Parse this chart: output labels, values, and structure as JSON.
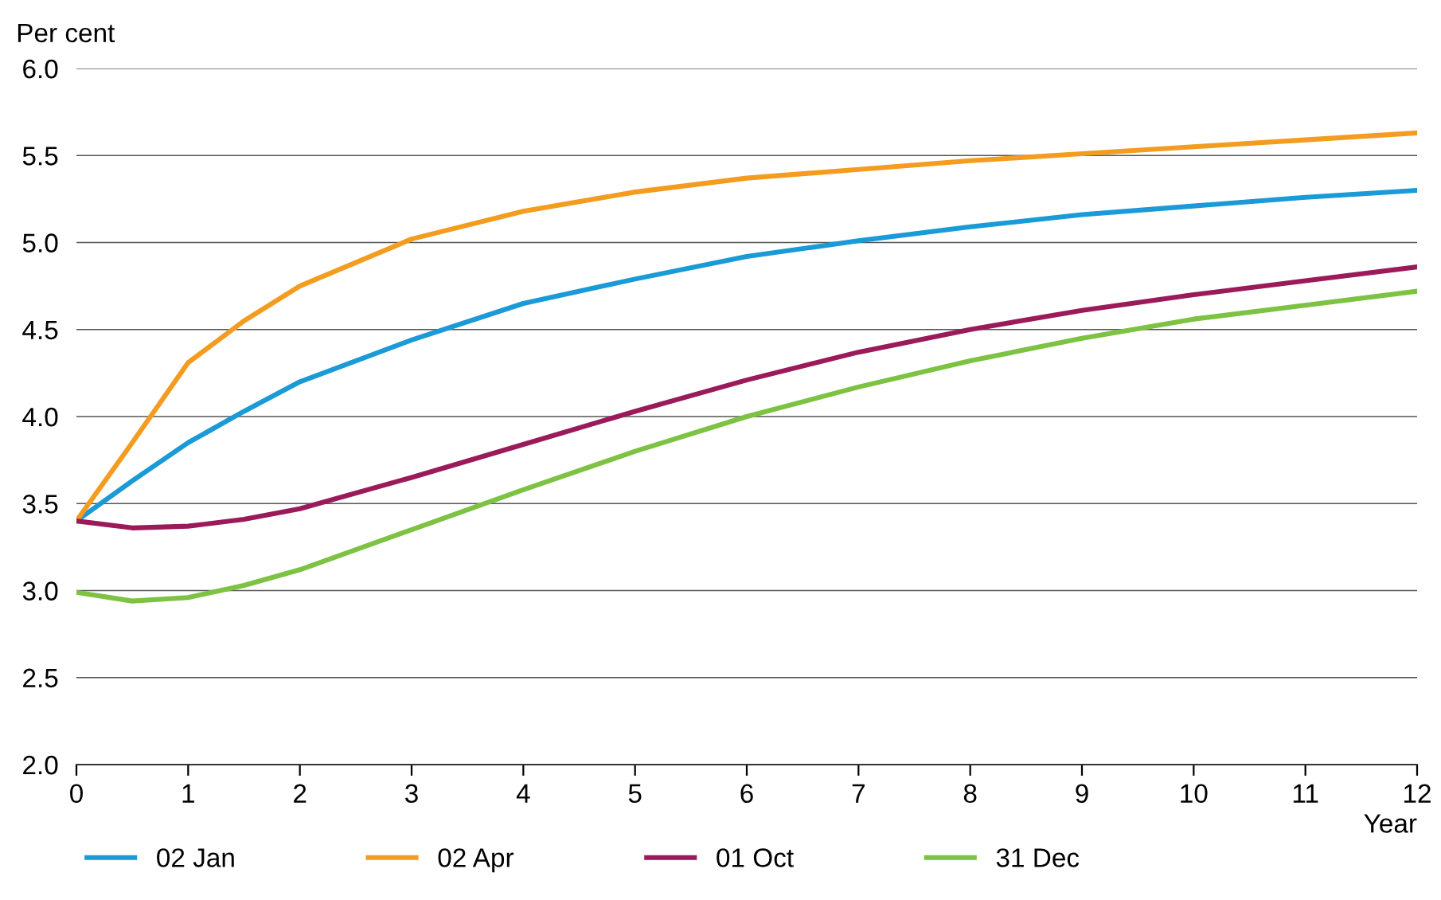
{
  "chart_data": {
    "type": "line",
    "ylabel": "Per cent",
    "xlabel": "Year",
    "x": [
      0,
      0.5,
      1,
      1.5,
      2,
      3,
      4,
      5,
      6,
      7,
      8,
      9,
      10,
      11,
      12
    ],
    "series": [
      {
        "name": "02 Jan",
        "color": "#1a9ad6",
        "values": [
          3.4,
          3.63,
          3.85,
          4.03,
          4.2,
          4.44,
          4.65,
          4.79,
          4.92,
          5.01,
          5.09,
          5.16,
          5.21,
          5.26,
          5.3
        ]
      },
      {
        "name": "02 Apr",
        "color": "#f39c1f",
        "values": [
          3.4,
          3.85,
          4.31,
          4.55,
          4.75,
          5.02,
          5.18,
          5.29,
          5.37,
          5.42,
          5.47,
          5.51,
          5.55,
          5.59,
          5.63
        ]
      },
      {
        "name": "01 Oct",
        "color": "#9b1b5a",
        "values": [
          3.4,
          3.36,
          3.37,
          3.41,
          3.47,
          3.65,
          3.84,
          4.03,
          4.21,
          4.37,
          4.5,
          4.61,
          4.7,
          4.78,
          4.86
        ]
      },
      {
        "name": "31 Dec",
        "color": "#7dc242",
        "values": [
          2.99,
          2.94,
          2.96,
          3.03,
          3.12,
          3.35,
          3.58,
          3.8,
          4.0,
          4.17,
          4.32,
          4.45,
          4.56,
          4.64,
          4.72
        ]
      }
    ],
    "xlim": [
      0,
      12
    ],
    "xticks": [
      0,
      1,
      2,
      3,
      4,
      5,
      6,
      7,
      8,
      9,
      10,
      11,
      12
    ],
    "ylim": [
      2.0,
      6.0
    ],
    "yticks": [
      {
        "value": 2.0,
        "label": "2.0"
      },
      {
        "value": 2.5,
        "label": "2.5"
      },
      {
        "value": 3.0,
        "label": "3.0"
      },
      {
        "value": 3.5,
        "label": "3.5"
      },
      {
        "value": 4.0,
        "label": "4.0"
      },
      {
        "value": 4.5,
        "label": "4.5"
      },
      {
        "value": 5.0,
        "label": "5.0"
      },
      {
        "value": 5.5,
        "label": "5.5"
      },
      {
        "value": 6.0,
        "label": "6.0"
      }
    ],
    "grid": "y",
    "legend": "bottom",
    "marker": "none",
    "line_style": "solid"
  }
}
